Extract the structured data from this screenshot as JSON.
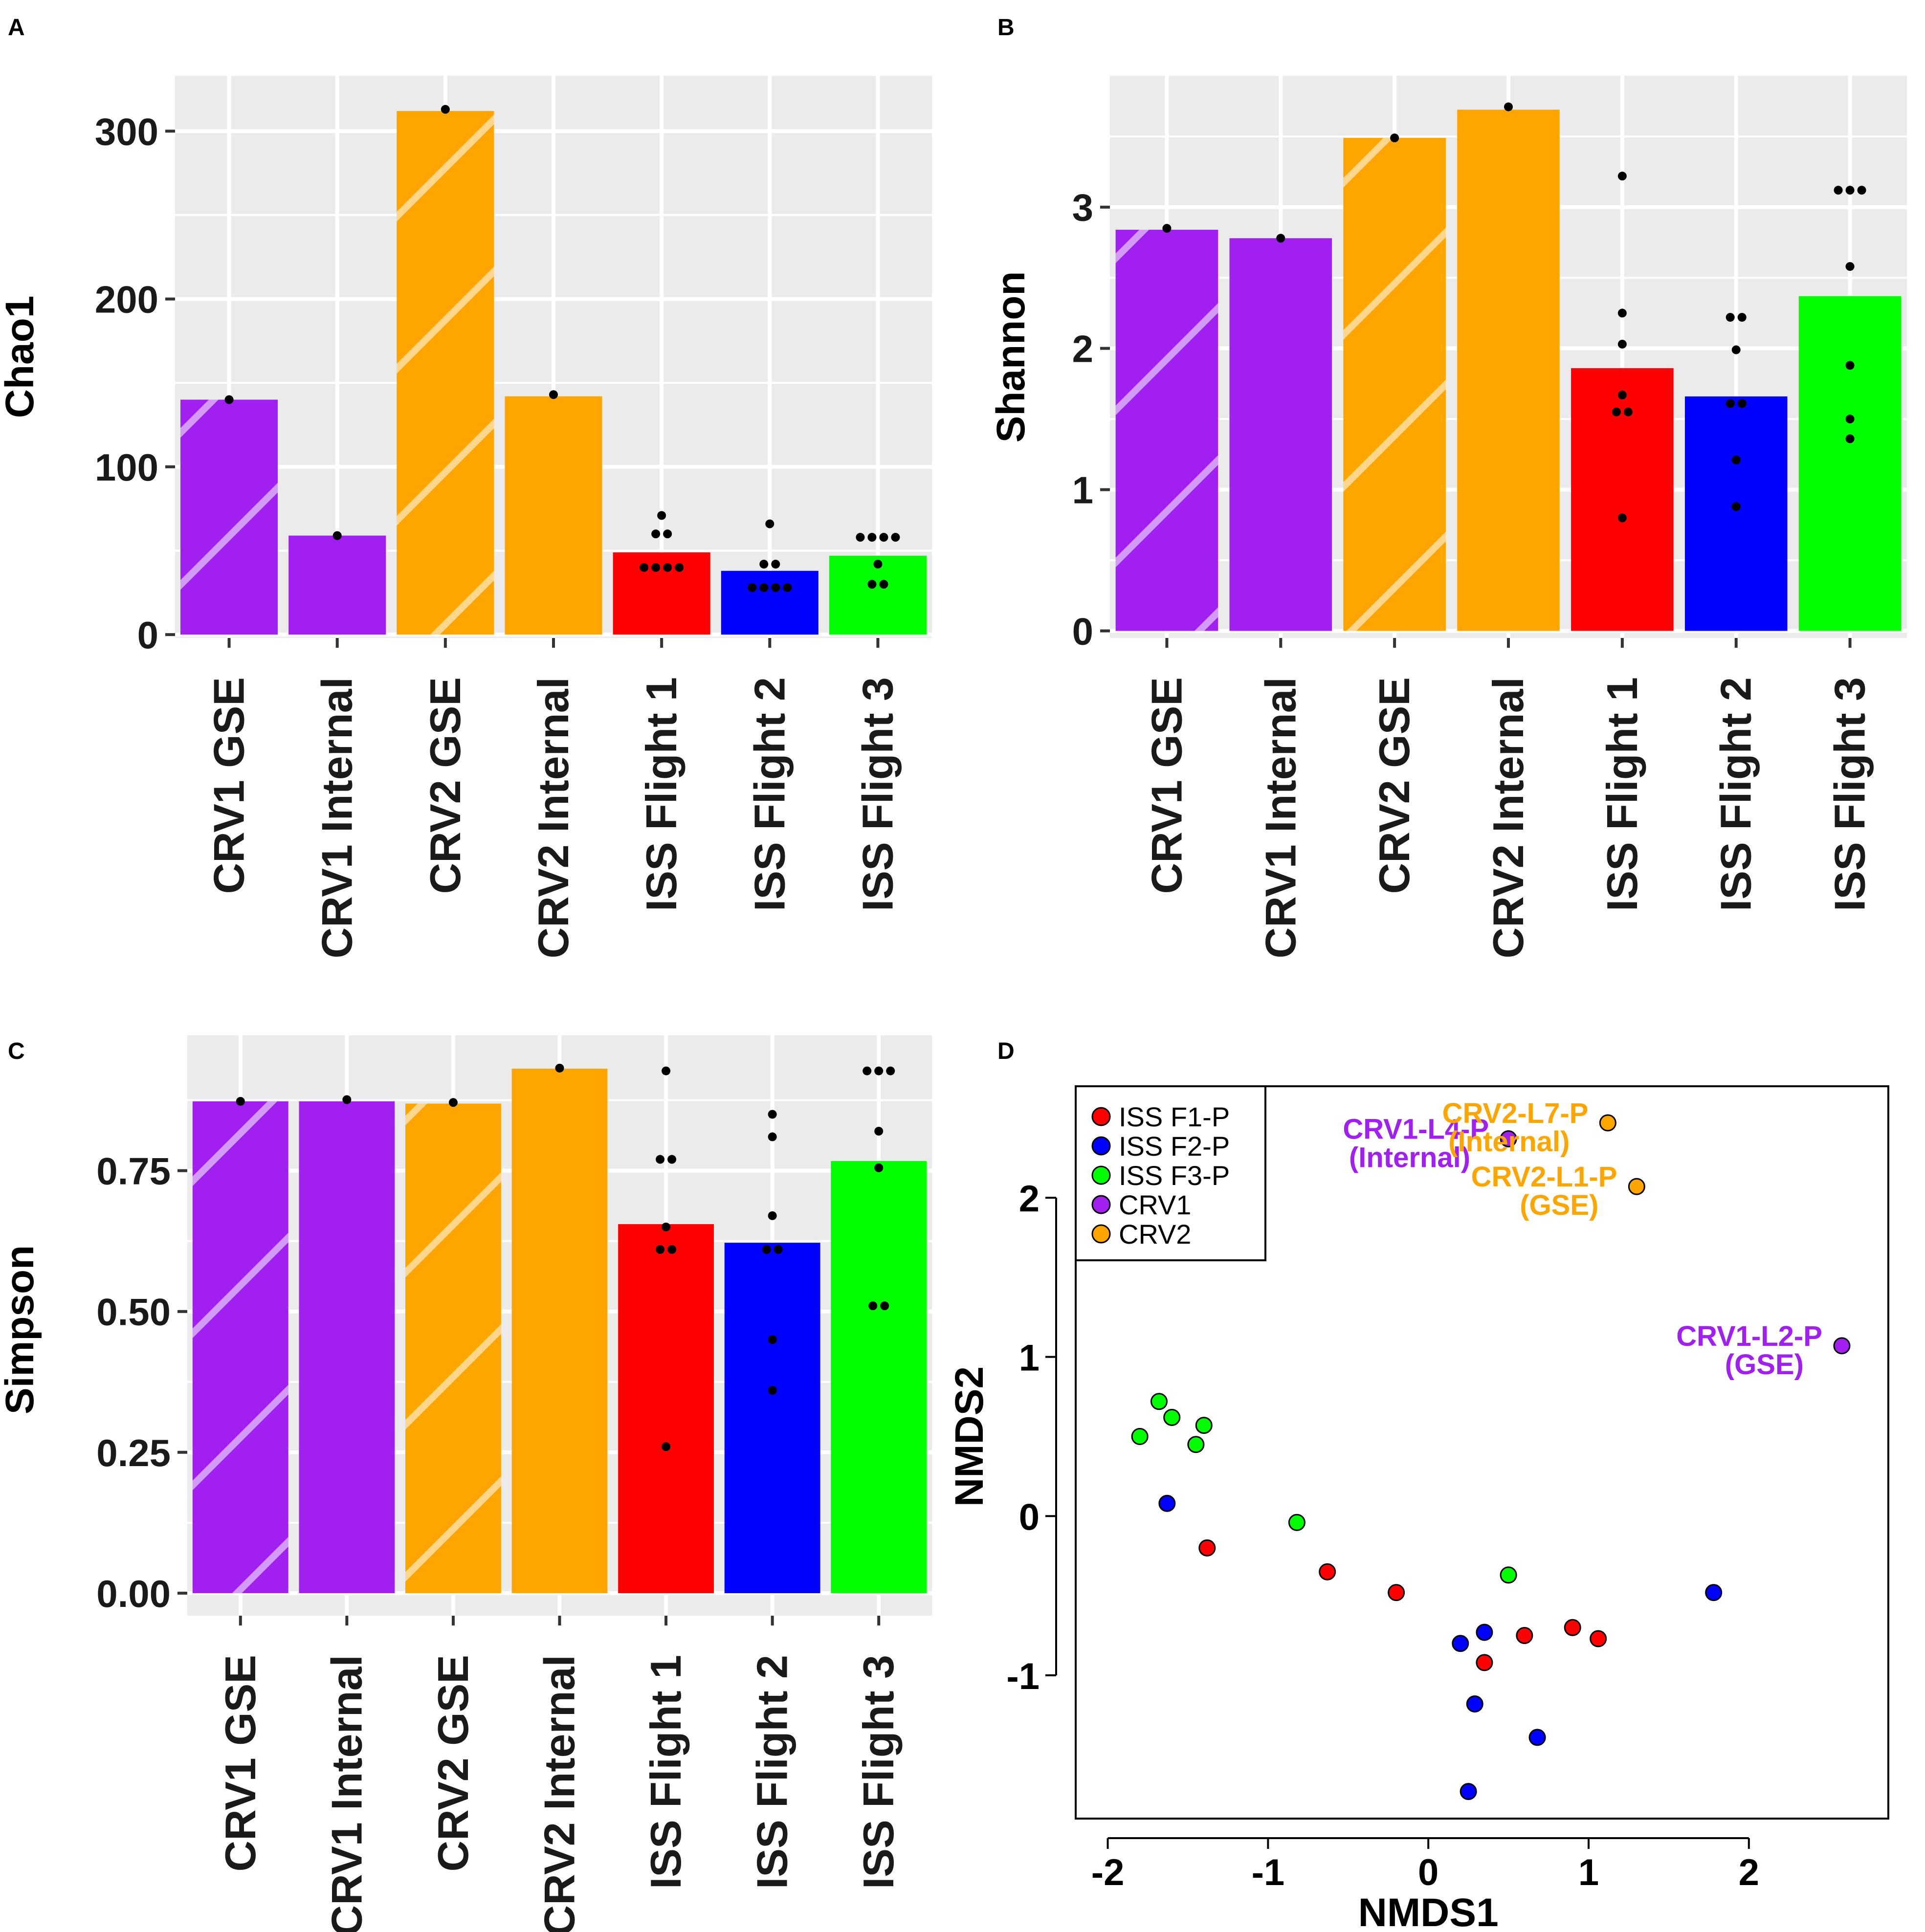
{
  "colors": {
    "panel_bg": "#ebebeb",
    "grid": "#ffffff",
    "purple": "#a020f0",
    "orange": "#ffa500",
    "red": "#ff0000",
    "blue": "#0000ff",
    "green": "#00ff00",
    "text": "#1a1a1a",
    "tick": "#333333"
  },
  "chart_data": [
    {
      "panel": "A",
      "type": "bar",
      "ylabel": "Chao1",
      "ylim": [
        -2,
        333
      ],
      "yticks": [
        0,
        100,
        200,
        300
      ],
      "ytick_labels": [
        "0",
        "100",
        "200",
        "300"
      ],
      "categories": [
        "CRV1 GSE",
        "CRV1 Internal",
        "CRV2 GSE",
        "CRV2 Internal",
        "ISS Flight 1",
        "ISS Flight 2",
        "ISS Flight 3"
      ],
      "values": [
        140,
        59,
        312,
        142,
        49,
        38,
        47
      ],
      "bar_colors": [
        "purple",
        "purple",
        "orange",
        "orange",
        "red",
        "blue",
        "green"
      ],
      "hatched": [
        true,
        false,
        true,
        false,
        false,
        false,
        false
      ],
      "points": [
        [
          140
        ],
        [
          59
        ],
        [
          313
        ],
        [
          143
        ],
        [
          71,
          60,
          60,
          40,
          40,
          40,
          40
        ],
        [
          66,
          42,
          42,
          28,
          28,
          28,
          28
        ],
        [
          58,
          58,
          58,
          58,
          42,
          30,
          30
        ]
      ]
    },
    {
      "panel": "B",
      "type": "bar",
      "ylabel": "Shannon",
      "ylim": [
        -0.05,
        3.93
      ],
      "yticks": [
        0,
        1,
        2,
        3
      ],
      "ytick_labels": [
        "0",
        "1",
        "2",
        "3"
      ],
      "categories": [
        "CRV1 GSE",
        "CRV1 Internal",
        "CRV2 GSE",
        "CRV2 Internal",
        "ISS Flight 1",
        "ISS Flight 2",
        "ISS Flight 3"
      ],
      "values": [
        2.84,
        2.78,
        3.49,
        3.69,
        1.86,
        1.66,
        2.37
      ],
      "bar_colors": [
        "purple",
        "purple",
        "orange",
        "orange",
        "red",
        "blue",
        "green"
      ],
      "hatched": [
        true,
        false,
        true,
        false,
        false,
        false,
        false
      ],
      "points": [
        [
          2.85
        ],
        [
          2.78
        ],
        [
          3.49
        ],
        [
          3.71
        ],
        [
          3.22,
          2.25,
          2.03,
          1.67,
          1.55,
          1.55,
          0.8
        ],
        [
          2.22,
          2.22,
          1.99,
          1.61,
          1.61,
          1.21,
          0.88
        ],
        [
          3.12,
          3.12,
          3.12,
          2.58,
          1.88,
          1.5,
          1.36
        ]
      ]
    },
    {
      "panel": "C",
      "type": "bar",
      "ylabel": "Simpson",
      "ylim": [
        -0.04,
        0.99
      ],
      "yticks": [
        0,
        0.25,
        0.5,
        0.75
      ],
      "ytick_labels": [
        "0.00",
        "0.25",
        "0.50",
        "0.75"
      ],
      "categories": [
        "CRV1 GSE",
        "CRV1 Internal",
        "CRV2 GSE",
        "CRV2 Internal",
        "ISS Flight 1",
        "ISS Flight 2",
        "ISS Flight 3"
      ],
      "values": [
        0.873,
        0.873,
        0.869,
        0.931,
        0.655,
        0.622,
        0.767
      ],
      "bar_colors": [
        "purple",
        "purple",
        "orange",
        "orange",
        "red",
        "blue",
        "green"
      ],
      "hatched": [
        true,
        false,
        true,
        false,
        false,
        false,
        false
      ],
      "points": [
        [
          0.873
        ],
        [
          0.876
        ],
        [
          0.871
        ],
        [
          0.932
        ],
        [
          0.927,
          0.77,
          0.77,
          0.65,
          0.61,
          0.61,
          0.26
        ],
        [
          0.85,
          0.81,
          0.67,
          0.61,
          0.61,
          0.45,
          0.36
        ],
        [
          0.927,
          0.927,
          0.927,
          0.82,
          0.755,
          0.51,
          0.51
        ]
      ]
    },
    {
      "panel": "D",
      "type": "scatter",
      "xlabel": "NMDS1",
      "ylabel": "NMDS2",
      "xlim": [
        -2.2,
        2.87
      ],
      "ylim": [
        -1.9,
        2.7
      ],
      "xticks": [
        -2,
        -1,
        0,
        1,
        2
      ],
      "xtick_labels": [
        "-2",
        "-1",
        "0",
        "1",
        "2"
      ],
      "yticks": [
        -1,
        0,
        1,
        2
      ],
      "ytick_labels": [
        "-1",
        "0",
        "1",
        "2"
      ],
      "legend": {
        "position": "top-left",
        "entries": [
          {
            "label": "ISS F1-P",
            "color": "red"
          },
          {
            "label": "ISS F2-P",
            "color": "blue"
          },
          {
            "label": "ISS F3-P",
            "color": "green"
          },
          {
            "label": "CRV1",
            "color": "purple"
          },
          {
            "label": "CRV2",
            "color": "orange"
          }
        ]
      },
      "series": [
        {
          "name": "ISS F1-P",
          "color": "red",
          "x": [
            -1.38,
            -0.63,
            -0.2,
            0.35,
            0.6,
            0.9,
            1.06
          ],
          "y": [
            -0.2,
            -0.35,
            -0.48,
            -0.92,
            -0.75,
            -0.7,
            -0.77
          ]
        },
        {
          "name": "ISS F2-P",
          "color": "blue",
          "x": [
            -1.63,
            0.2,
            0.35,
            0.29,
            0.68,
            0.25,
            1.78
          ],
          "y": [
            0.08,
            -0.8,
            -0.73,
            -1.18,
            -1.39,
            -1.73,
            -0.48
          ]
        },
        {
          "name": "ISS F3-P",
          "color": "green",
          "x": [
            -1.68,
            -1.8,
            -1.6,
            -1.45,
            -1.4,
            -0.82,
            0.5
          ],
          "y": [
            0.72,
            0.5,
            0.62,
            0.45,
            0.57,
            -0.04,
            -0.37
          ]
        },
        {
          "name": "CRV1",
          "color": "purple",
          "x": [
            0.5,
            2.58
          ],
          "y": [
            2.37,
            1.07
          ]
        },
        {
          "name": "CRV2",
          "color": "orange",
          "x": [
            1.12,
            1.3
          ],
          "y": [
            2.47,
            2.07
          ]
        }
      ],
      "annotations": [
        {
          "line1": "CRV1-L4-P",
          "line2": "(Internal)",
          "color": "purple",
          "x": 0.5,
          "y": 2.37
        },
        {
          "line1": "CRV2-L7-P",
          "line2": "(Internal)",
          "color": "orange",
          "x": 1.12,
          "y": 2.47
        },
        {
          "line1": "CRV2-L1-P",
          "line2": "(GSE)",
          "color": "orange",
          "x": 1.3,
          "y": 2.07
        },
        {
          "line1": "CRV1-L2-P",
          "line2": "(GSE)",
          "color": "purple",
          "x": 2.58,
          "y": 1.07
        }
      ]
    }
  ]
}
